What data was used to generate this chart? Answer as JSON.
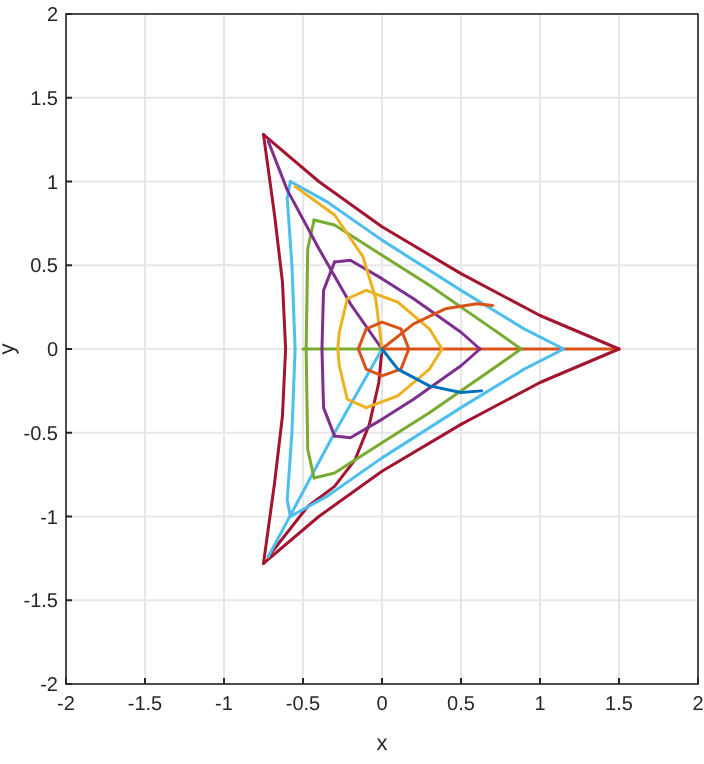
{
  "chart_data": {
    "type": "line",
    "xlabel": "x",
    "ylabel": "y",
    "xlim": [
      -2,
      2
    ],
    "ylim": [
      -2,
      2
    ],
    "xticks": [
      -2,
      -1.5,
      -1,
      -0.5,
      0,
      0.5,
      1,
      1.5,
      2
    ],
    "yticks": [
      -2,
      -1.5,
      -1,
      -0.5,
      0,
      0.5,
      1,
      1.5,
      2
    ],
    "grid": true,
    "marker": "none",
    "line_style": "solid",
    "series": [
      {
        "color": "#d95319",
        "x": [
          0,
          1.5
        ],
        "values": [
          0,
          0
        ]
      },
      {
        "color": "#a2142f",
        "x": [
          1.5,
          1.0,
          0.5,
          0,
          -0.4,
          -0.75
        ],
        "values": [
          0,
          0.2,
          0.45,
          0.73,
          1.0,
          1.28
        ]
      },
      {
        "color": "#a2142f",
        "x": [
          -0.75,
          -0.68,
          -0.63,
          -0.61,
          -0.63,
          -0.68,
          -0.75
        ],
        "values": [
          1.28,
          0.8,
          0.4,
          0,
          -0.4,
          -0.8,
          -1.28
        ]
      },
      {
        "color": "#a2142f",
        "x": [
          -0.75,
          -0.4,
          0,
          0.5,
          1.0,
          1.5
        ],
        "values": [
          -1.28,
          -1.0,
          -0.73,
          -0.45,
          -0.2,
          0
        ]
      },
      {
        "color": "#a2142f",
        "x": [
          0,
          -0.02,
          -0.08,
          -0.17,
          -0.3,
          -0.47,
          -0.72
        ],
        "values": [
          0,
          -0.2,
          -0.45,
          -0.66,
          -0.82,
          -0.94,
          -1.24
        ]
      },
      {
        "color": "#4dbeee",
        "x": [
          1.15,
          0.9,
          0.5,
          0,
          -0.35,
          -0.58
        ],
        "values": [
          0,
          0.12,
          0.35,
          0.65,
          0.88,
          1.0
        ]
      },
      {
        "color": "#4dbeee",
        "x": [
          -0.58,
          -0.6,
          -0.57,
          -0.55,
          -0.57,
          -0.6,
          -0.58
        ],
        "values": [
          1.0,
          0.9,
          0.5,
          0,
          -0.5,
          -0.9,
          -1.0
        ]
      },
      {
        "color": "#4dbeee",
        "x": [
          -0.58,
          -0.35,
          0,
          0.5,
          0.9,
          1.15
        ],
        "values": [
          -1.0,
          -0.88,
          -0.65,
          -0.35,
          -0.12,
          0
        ]
      },
      {
        "color": "#4dbeee",
        "x": [
          0,
          -0.3,
          -0.72
        ],
        "values": [
          0,
          -0.5,
          -1.24
        ]
      },
      {
        "color": "#77ac30",
        "x": [
          0.88,
          0.7,
          0.3,
          0,
          -0.3,
          -0.43
        ],
        "values": [
          0,
          0.12,
          0.38,
          0.56,
          0.74,
          0.77
        ]
      },
      {
        "color": "#77ac30",
        "x": [
          -0.43,
          -0.47,
          -0.48,
          -0.47,
          -0.43
        ],
        "values": [
          0.77,
          0.6,
          0,
          -0.6,
          -0.77
        ]
      },
      {
        "color": "#77ac30",
        "x": [
          -0.43,
          -0.3,
          0,
          0.3,
          0.7,
          0.88
        ],
        "values": [
          -0.77,
          -0.74,
          -0.56,
          -0.38,
          -0.12,
          0
        ]
      },
      {
        "color": "#77ac30",
        "x": [
          -0.5,
          0
        ],
        "values": [
          0,
          0
        ]
      },
      {
        "color": "#7e2f8e",
        "x": [
          0.62,
          0.5,
          0.2,
          0,
          -0.2,
          -0.3
        ],
        "values": [
          0,
          0.1,
          0.3,
          0.42,
          0.53,
          0.52
        ]
      },
      {
        "color": "#7e2f8e",
        "x": [
          -0.3,
          -0.37,
          -0.38,
          -0.37,
          -0.3
        ],
        "values": [
          0.52,
          0.35,
          0,
          -0.35,
          -0.52
        ]
      },
      {
        "color": "#7e2f8e",
        "x": [
          -0.3,
          -0.2,
          0,
          0.2,
          0.5,
          0.62
        ],
        "values": [
          -0.52,
          -0.53,
          -0.42,
          -0.3,
          -0.1,
          0
        ]
      },
      {
        "color": "#7e2f8e",
        "x": [
          0,
          -0.2,
          -0.4,
          -0.6,
          -0.72
        ],
        "values": [
          0,
          0.27,
          0.6,
          0.95,
          1.24
        ]
      },
      {
        "color": "#edb120",
        "x": [
          0.38,
          0.3,
          0.1,
          -0.1
        ],
        "values": [
          0,
          0.12,
          0.28,
          0.35
        ]
      },
      {
        "color": "#edb120",
        "x": [
          -0.1,
          -0.22,
          -0.27,
          -0.28,
          -0.27,
          -0.22,
          -0.1
        ],
        "values": [
          0.35,
          0.3,
          0.1,
          0,
          -0.1,
          -0.3,
          -0.35
        ]
      },
      {
        "color": "#edb120",
        "x": [
          -0.1,
          0.1,
          0.3,
          0.38
        ],
        "values": [
          -0.35,
          -0.28,
          -0.12,
          0
        ]
      },
      {
        "color": "#edb120",
        "x": [
          0,
          -0.04,
          -0.12,
          -0.3,
          -0.55
        ],
        "values": [
          0,
          0.3,
          0.55,
          0.8,
          0.97
        ]
      },
      {
        "color": "#d95319",
        "x": [
          0.17,
          0.12,
          0,
          -0.1,
          -0.15
        ],
        "values": [
          0,
          0.12,
          0.16,
          0.12,
          0
        ]
      },
      {
        "color": "#d95319",
        "x": [
          -0.15,
          -0.1,
          0,
          0.12,
          0.17
        ],
        "values": [
          0,
          -0.12,
          -0.16,
          -0.12,
          0
        ]
      },
      {
        "color": "#d95319",
        "x": [
          0,
          0.2,
          0.4,
          0.6,
          0.7
        ],
        "values": [
          0,
          0.15,
          0.24,
          0.27,
          0.26
        ]
      },
      {
        "color": "#0072bd",
        "x": [
          0,
          0.1,
          0.3,
          0.5,
          0.63
        ],
        "values": [
          0,
          -0.12,
          -0.22,
          -0.26,
          -0.25
        ]
      }
    ]
  }
}
